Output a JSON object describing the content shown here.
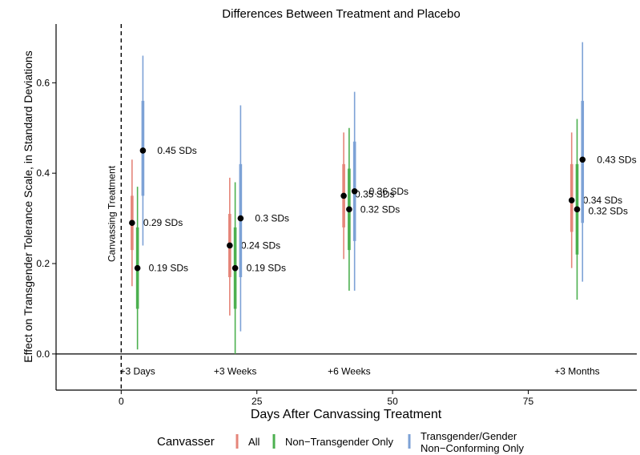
{
  "chart_data": {
    "type": "scatter",
    "title": "Differences Between Treatment and Placebo",
    "xlabel": "Days After Canvassing Treatment",
    "ylabel": "Effect on Transgender Tolerance Scale, in Standard Deviations",
    "xlim": [
      -12,
      95
    ],
    "ylim": [
      -0.08,
      0.73
    ],
    "x_ticks": [
      0,
      25,
      50,
      75
    ],
    "y_ticks": [
      0.0,
      0.2,
      0.4,
      0.6
    ],
    "y_tick_labels": [
      "0.0",
      "0.2",
      "0.4",
      "0.6"
    ],
    "grid": false,
    "reference_line_y": 0,
    "vline": {
      "x": 0,
      "label": "Canvassing Treatment"
    },
    "period_labels": [
      {
        "x": 3,
        "label": "+3 Days"
      },
      {
        "x": 21,
        "label": "+3 Weeks"
      },
      {
        "x": 42,
        "label": "+6 Weeks"
      },
      {
        "x": 84,
        "label": "+3 Months"
      }
    ],
    "legend": {
      "title": "Canvasser",
      "position": "bottom",
      "entries": [
        "All",
        "Non−Transgender Only",
        "Transgender/Gender",
        "Non−Conforming Only"
      ]
    },
    "series": [
      {
        "name": "All",
        "color": "#E5857A",
        "points": [
          {
            "x": 2,
            "y": 0.29,
            "ci_inner": [
              0.23,
              0.35
            ],
            "ci_outer": [
              0.15,
              0.43
            ],
            "label": "0.29 SDs"
          },
          {
            "x": 20,
            "y": 0.24,
            "ci_inner": [
              0.17,
              0.31
            ],
            "ci_outer": [
              0.085,
              0.39
            ],
            "label": "0.24 SDs"
          },
          {
            "x": 41,
            "y": 0.35,
            "ci_inner": [
              0.28,
              0.42
            ],
            "ci_outer": [
              0.21,
              0.49
            ],
            "label": "0.35 SDs"
          },
          {
            "x": 83,
            "y": 0.34,
            "ci_inner": [
              0.27,
              0.42
            ],
            "ci_outer": [
              0.19,
              0.49
            ],
            "label": "0.34 SDs"
          }
        ]
      },
      {
        "name": "Non−Transgender Only",
        "color": "#4CB04F",
        "points": [
          {
            "x": 3,
            "y": 0.19,
            "ci_inner": [
              0.1,
              0.28
            ],
            "ci_outer": [
              0.01,
              0.37
            ],
            "label": "0.19 SDs"
          },
          {
            "x": 21,
            "y": 0.19,
            "ci_inner": [
              0.1,
              0.28
            ],
            "ci_outer": [
              0.0,
              0.38
            ],
            "label": "0.19 SDs"
          },
          {
            "x": 42,
            "y": 0.32,
            "ci_inner": [
              0.23,
              0.41
            ],
            "ci_outer": [
              0.14,
              0.5
            ],
            "label": "0.32 SDs"
          },
          {
            "x": 84,
            "y": 0.32,
            "ci_inner": [
              0.22,
              0.42
            ],
            "ci_outer": [
              0.12,
              0.52
            ],
            "label": "0.32 SDs"
          }
        ]
      },
      {
        "name": "Transgender/Gender Non−Conforming Only",
        "color": "#7DA2D6",
        "points": [
          {
            "x": 4,
            "y": 0.45,
            "ci_inner": [
              0.35,
              0.56
            ],
            "ci_outer": [
              0.24,
              0.66
            ],
            "label": "0.45 SDs"
          },
          {
            "x": 22,
            "y": 0.3,
            "ci_inner": [
              0.17,
              0.42
            ],
            "ci_outer": [
              0.05,
              0.55
            ],
            "label": "0.3 SDs"
          },
          {
            "x": 43,
            "y": 0.36,
            "ci_inner": [
              0.25,
              0.47
            ],
            "ci_outer": [
              0.14,
              0.58
            ],
            "label": "0.36 SDs"
          },
          {
            "x": 85,
            "y": 0.43,
            "ci_inner": [
              0.29,
              0.56
            ],
            "ci_outer": [
              0.16,
              0.69
            ],
            "label": "0.43 SDs"
          }
        ]
      }
    ]
  }
}
